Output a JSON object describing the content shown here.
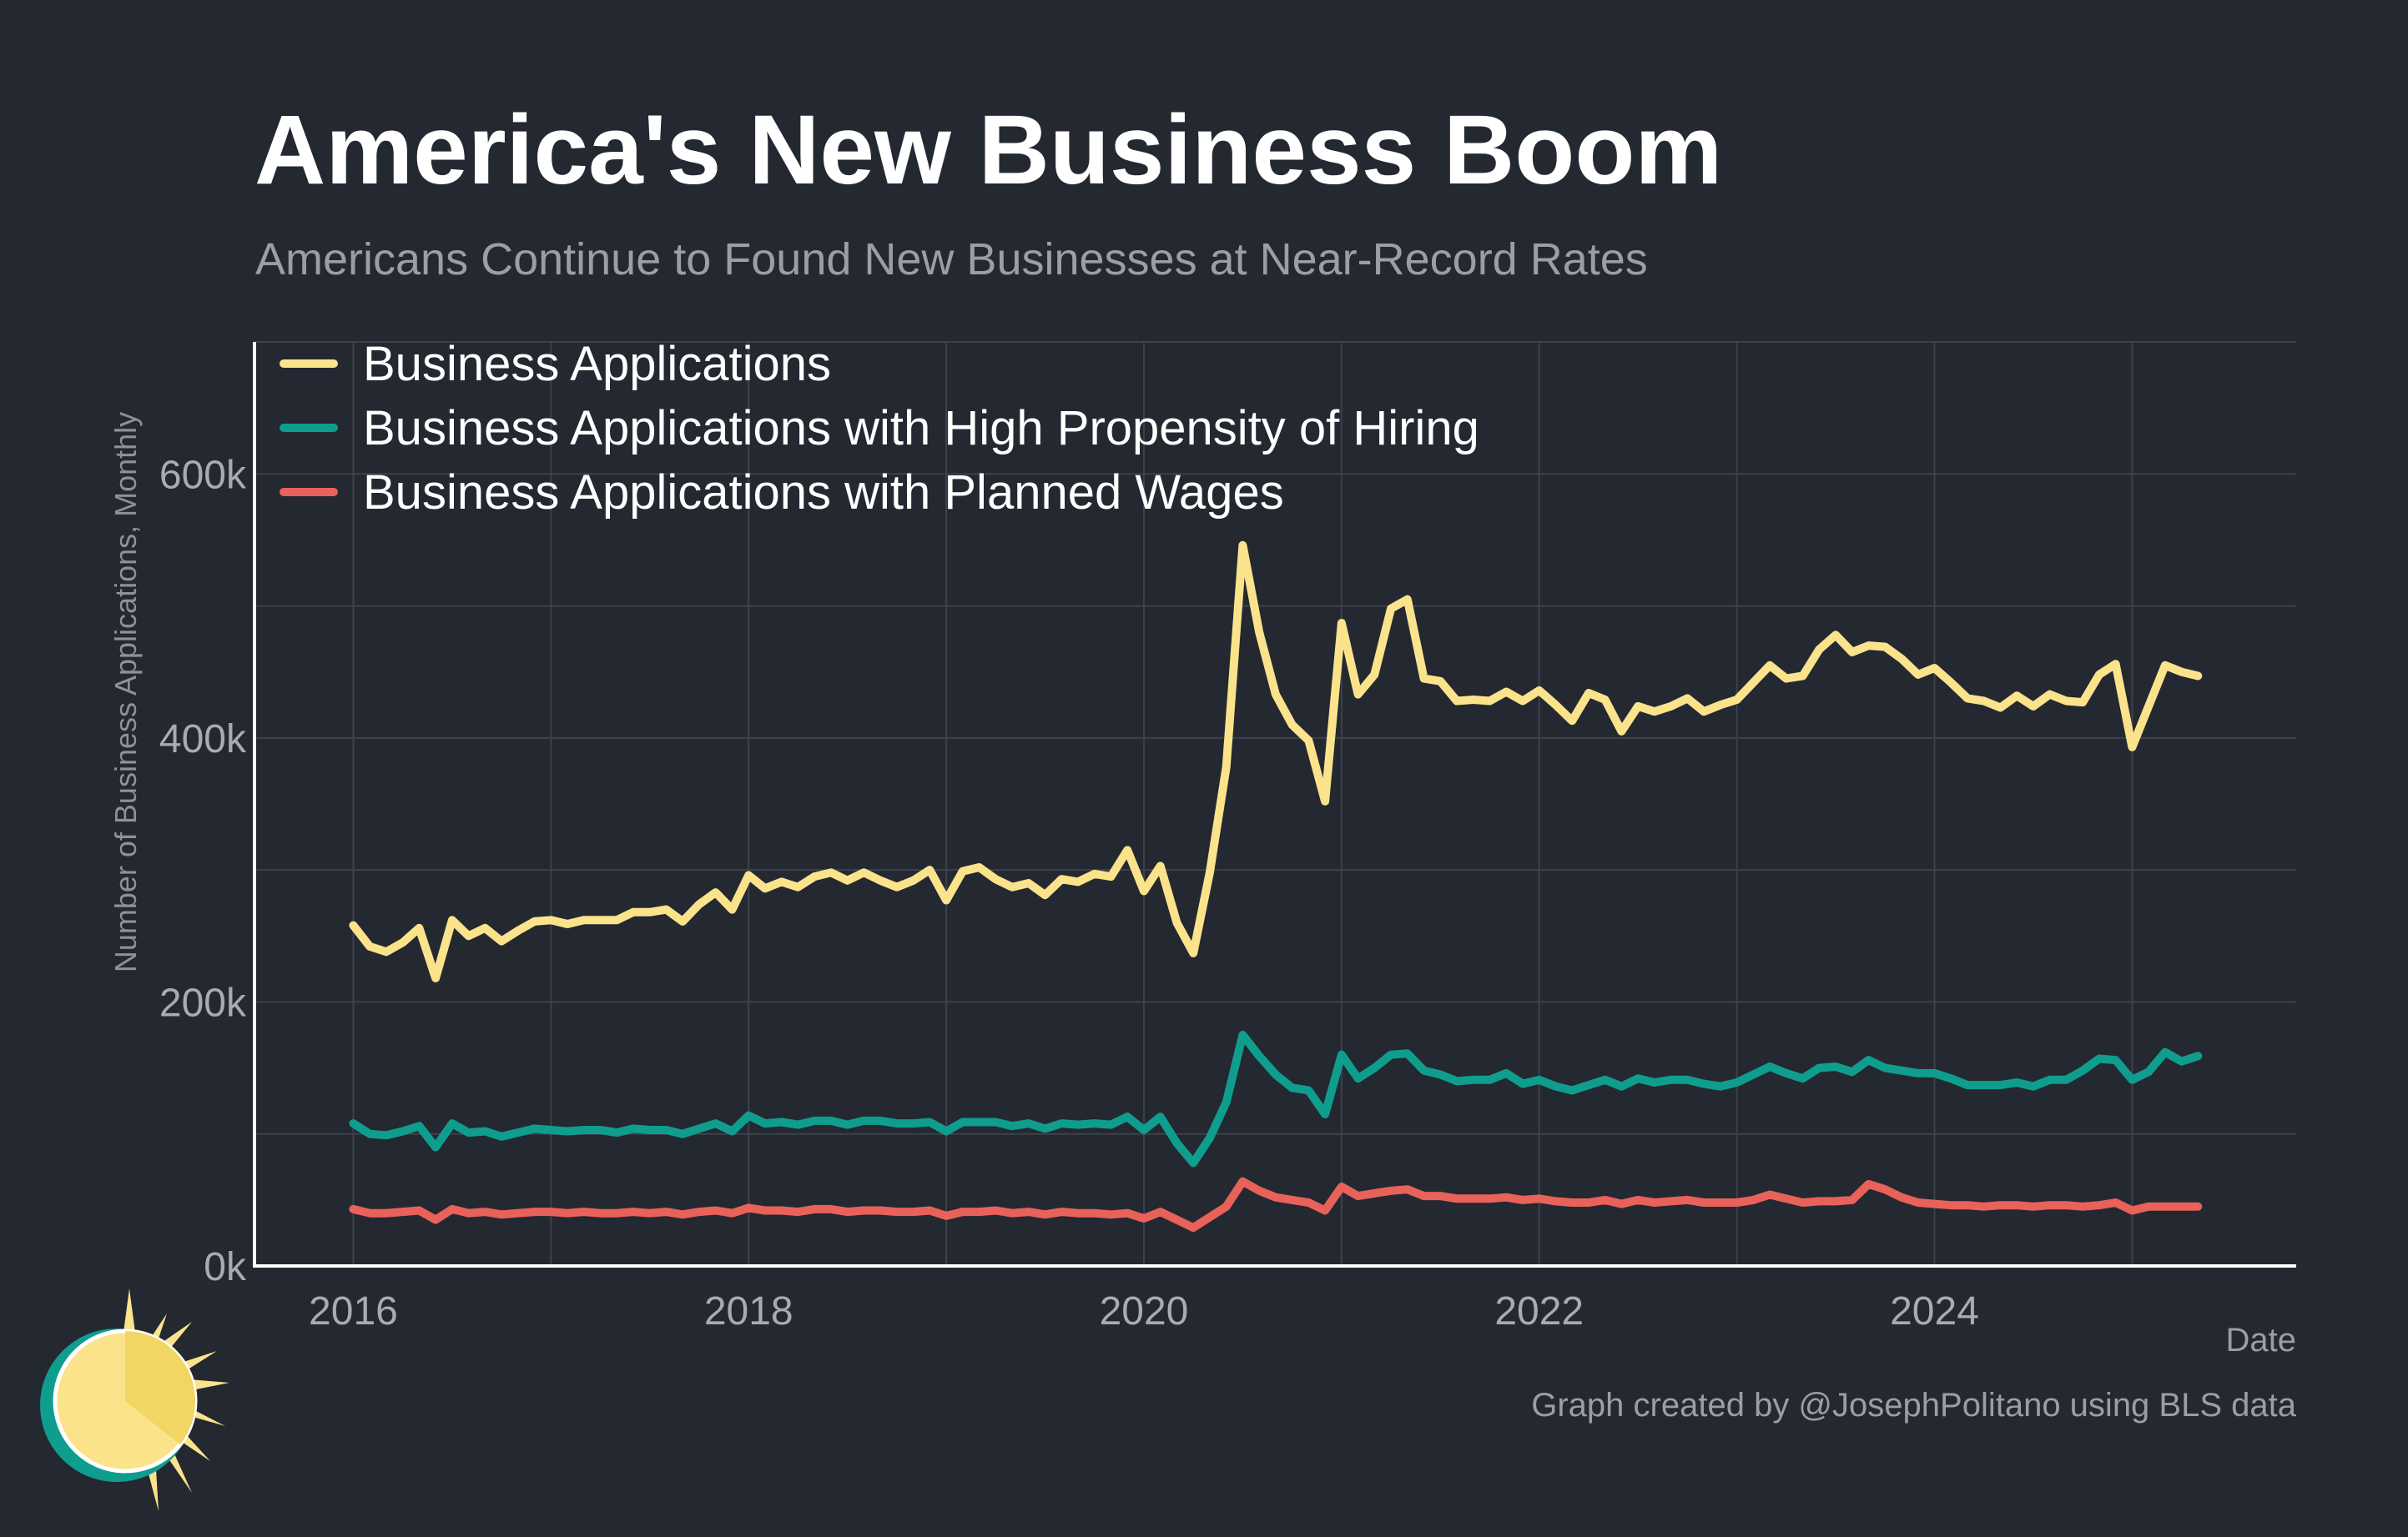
{
  "title": "America's New Business Boom",
  "subtitle": "Americans Continue to Found New Businesses at Near-Record Rates",
  "credit": "Graph created by @JosephPolitano using BLS data",
  "chart_data": {
    "type": "line",
    "xlabel": "Date",
    "ylabel": "Number of Business Applications, Monthly",
    "x_ticks": [
      "2016",
      "2018",
      "2020",
      "2022",
      "2024"
    ],
    "y_ticks": [
      "0k",
      "200k",
      "400k",
      "600k"
    ],
    "ylim": [
      0,
      700
    ],
    "xlim": [
      2015.5,
      2025.83
    ],
    "grid": true,
    "legend_position": "top-left",
    "x_start": "2016-01",
    "x_end": "2025-04",
    "frequency": "monthly",
    "y_units": "thousands",
    "series": [
      {
        "name": "Business Applications",
        "color": "#fbe38c",
        "values": [
          258,
          242,
          238,
          245,
          256,
          218,
          262,
          250,
          256,
          246,
          254,
          261,
          262,
          259,
          262,
          262,
          262,
          268,
          268,
          270,
          261,
          274,
          283,
          270,
          296,
          286,
          291,
          287,
          295,
          298,
          292,
          298,
          292,
          287,
          292,
          300,
          277,
          299,
          302,
          293,
          287,
          290,
          281,
          293,
          291,
          297,
          295,
          315,
          284,
          303,
          260,
          237,
          298,
          378,
          546,
          480,
          433,
          410,
          398,
          352,
          487,
          433,
          448,
          498,
          505,
          445,
          443,
          428,
          429,
          428,
          435,
          428,
          436,
          425,
          413,
          434,
          429,
          405,
          424,
          420,
          424,
          430,
          420,
          425,
          429,
          442,
          455,
          445,
          447,
          467,
          478,
          465,
          470,
          469,
          460,
          448,
          453,
          442,
          430,
          428,
          423,
          432,
          424,
          433,
          428,
          427,
          448,
          456,
          393,
          424,
          455,
          450,
          447
        ]
      },
      {
        "name": "Business Applications with High Propensity of Hiring",
        "color": "#0f9d8e",
        "values": [
          108,
          100,
          99,
          102,
          106,
          90,
          108,
          101,
          102,
          98,
          101,
          104,
          103,
          102,
          103,
          103,
          101,
          104,
          103,
          103,
          100,
          104,
          108,
          102,
          114,
          108,
          109,
          107,
          110,
          110,
          107,
          110,
          110,
          108,
          108,
          109,
          102,
          109,
          109,
          109,
          106,
          108,
          104,
          108,
          107,
          108,
          107,
          113,
          103,
          113,
          93,
          78,
          97,
          124,
          175,
          159,
          145,
          135,
          133,
          115,
          160,
          142,
          150,
          160,
          161,
          148,
          145,
          140,
          141,
          141,
          146,
          138,
          141,
          136,
          133,
          137,
          141,
          136,
          142,
          139,
          141,
          141,
          138,
          136,
          139,
          145,
          151,
          146,
          142,
          150,
          151,
          147,
          156,
          150,
          148,
          146,
          146,
          142,
          137,
          137,
          137,
          139,
          136,
          141,
          141,
          148,
          157,
          156,
          141,
          147,
          162,
          155,
          159
        ]
      },
      {
        "name": "Business Applications with Planned Wages",
        "color": "#e8625a",
        "values": [
          43,
          40,
          40,
          41,
          42,
          35,
          43,
          40,
          41,
          39,
          40,
          41,
          41,
          40,
          41,
          40,
          40,
          41,
          40,
          41,
          39,
          41,
          42,
          40,
          44,
          42,
          42,
          41,
          43,
          43,
          41,
          42,
          42,
          41,
          41,
          42,
          38,
          41,
          41,
          42,
          40,
          41,
          39,
          41,
          40,
          40,
          39,
          40,
          36,
          41,
          35,
          29,
          37,
          45,
          64,
          57,
          52,
          50,
          48,
          42,
          60,
          53,
          55,
          57,
          58,
          53,
          53,
          51,
          51,
          51,
          52,
          50,
          51,
          49,
          48,
          48,
          50,
          47,
          50,
          48,
          49,
          50,
          48,
          48,
          48,
          50,
          54,
          51,
          48,
          49,
          49,
          50,
          62,
          58,
          52,
          48,
          47,
          46,
          46,
          45,
          46,
          46,
          45,
          46,
          46,
          45,
          46,
          48,
          42,
          45,
          45,
          45,
          45
        ]
      }
    ]
  }
}
